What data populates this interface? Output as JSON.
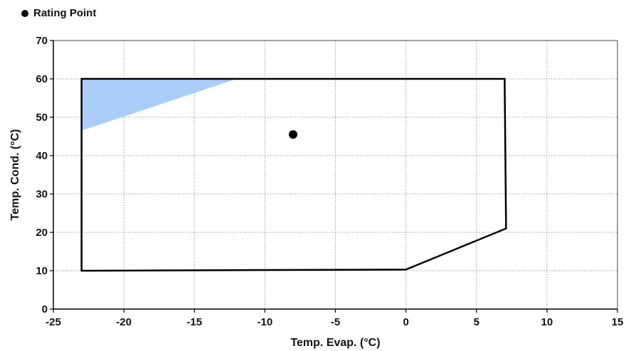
{
  "legend": {
    "label": "Rating Point"
  },
  "chart_data": {
    "type": "scatter",
    "xlabel": "Temp. Evap. (°C)",
    "ylabel": "Temp. Cond. (°C)",
    "xlim": [
      -25,
      15
    ],
    "ylim": [
      0,
      70
    ],
    "x_ticks": [
      -25,
      -20,
      -15,
      -10,
      -5,
      0,
      5,
      10,
      15
    ],
    "y_ticks": [
      0,
      10,
      20,
      30,
      40,
      50,
      60,
      70
    ],
    "grid": true,
    "legend_position": "top-left",
    "envelope": [
      [
        -23,
        60
      ],
      [
        7,
        60
      ],
      [
        7.1,
        21
      ],
      [
        0,
        10.3
      ],
      [
        -23,
        10
      ]
    ],
    "shaded_region": {
      "points": [
        [
          -23,
          60
        ],
        [
          -12,
          60
        ],
        [
          -23,
          46.5
        ]
      ],
      "color": "#aacdfa"
    },
    "series": [
      {
        "name": "Rating Point",
        "points": [
          {
            "x": -8,
            "y": 45.5
          }
        ],
        "color": "#000000"
      }
    ]
  }
}
